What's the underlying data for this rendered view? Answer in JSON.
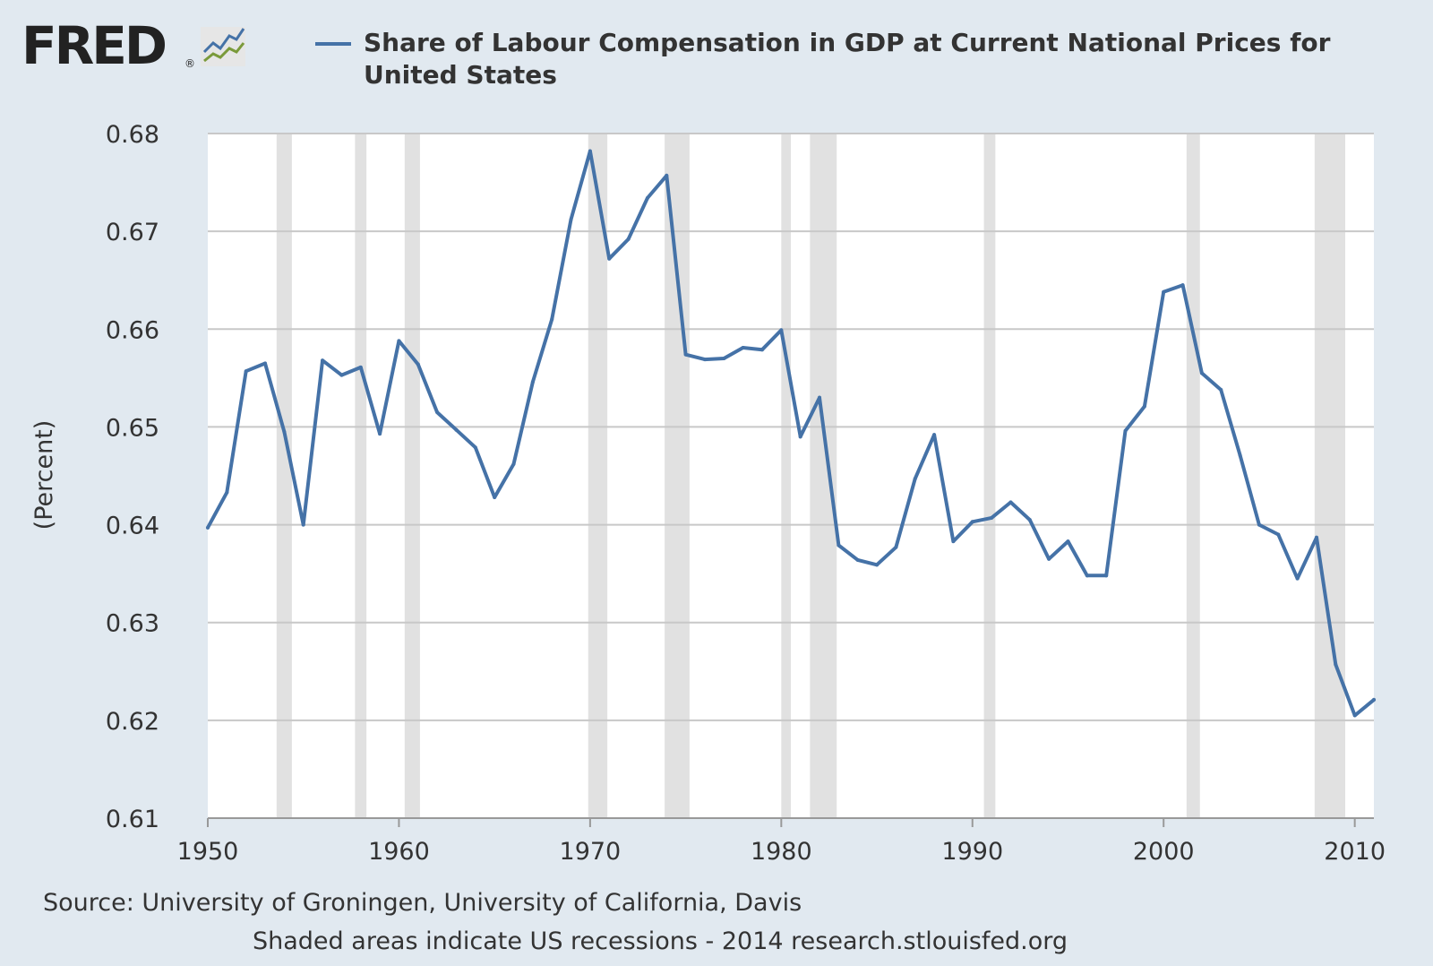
{
  "branding": {
    "logo_text": "FRED",
    "logo_mark": "®",
    "logo_icon": "line-chart-icon"
  },
  "colors": {
    "background": "#e1e9f0",
    "plot_background": "#ffffff",
    "series": "#4572a7",
    "recession_band": "#e1e1e1",
    "gridline": "#c8c8c8",
    "text": "#333333"
  },
  "chart_data": {
    "type": "line",
    "title": "Share of Labour Compensation in GDP at Current National Prices for United States",
    "xlabel": "",
    "ylabel": "(Percent)",
    "xlim": [
      1950,
      2011
    ],
    "ylim": [
      0.61,
      0.68
    ],
    "x_ticks": [
      1950,
      1960,
      1970,
      1980,
      1990,
      2000,
      2010
    ],
    "y_ticks": [
      "0.61",
      "0.62",
      "0.63",
      "0.64",
      "0.65",
      "0.66",
      "0.67",
      "0.68"
    ],
    "grid": true,
    "legend": "top",
    "series": [
      {
        "name": "Share of Labour Compensation in GDP at Current National Prices for United States",
        "x": [
          1950,
          1951,
          1952,
          1953,
          1954,
          1955,
          1956,
          1957,
          1958,
          1959,
          1960,
          1961,
          1962,
          1963,
          1964,
          1965,
          1966,
          1967,
          1968,
          1969,
          1970,
          1971,
          1972,
          1973,
          1974,
          1975,
          1976,
          1977,
          1978,
          1979,
          1980,
          1981,
          1982,
          1983,
          1984,
          1985,
          1986,
          1987,
          1988,
          1989,
          1990,
          1991,
          1992,
          1993,
          1994,
          1995,
          1996,
          1997,
          1998,
          1999,
          2000,
          2001,
          2002,
          2003,
          2004,
          2005,
          2006,
          2007,
          2008,
          2009,
          2010,
          2011
        ],
        "values": [
          0.6397,
          0.6433,
          0.6557,
          0.6565,
          0.6495,
          0.64,
          0.6568,
          0.6553,
          0.6561,
          0.6493,
          0.6588,
          0.6564,
          0.6515,
          0.6497,
          0.6479,
          0.6428,
          0.6462,
          0.6546,
          0.661,
          0.6712,
          0.6782,
          0.6672,
          0.6692,
          0.6734,
          0.6757,
          0.6574,
          0.6569,
          0.657,
          0.6581,
          0.6579,
          0.6599,
          0.649,
          0.653,
          0.6379,
          0.6364,
          0.6359,
          0.6377,
          0.6447,
          0.6492,
          0.6383,
          0.6403,
          0.6407,
          0.6423,
          0.6405,
          0.6365,
          0.6383,
          0.6348,
          0.6348,
          0.6496,
          0.6521,
          0.6638,
          0.6645,
          0.6555,
          0.6538,
          0.6471,
          0.64,
          0.639,
          0.6345,
          0.6387,
          0.6257,
          0.6205,
          0.6221
        ]
      }
    ],
    "recessions": [
      [
        1953.6,
        1954.4
      ],
      [
        1957.7,
        1958.3
      ],
      [
        1960.3,
        1961.1
      ],
      [
        1969.9,
        1970.9
      ],
      [
        1973.9,
        1975.2
      ],
      [
        1980.0,
        1980.5
      ],
      [
        1981.5,
        1982.9
      ],
      [
        1990.6,
        1991.2
      ],
      [
        2001.2,
        2001.9
      ],
      [
        2007.9,
        2009.5
      ]
    ]
  },
  "footer": {
    "source": "Source: University of Groningen, University of California, Davis",
    "note": "Shaded areas indicate US recessions - 2014 research.stlouisfed.org"
  }
}
